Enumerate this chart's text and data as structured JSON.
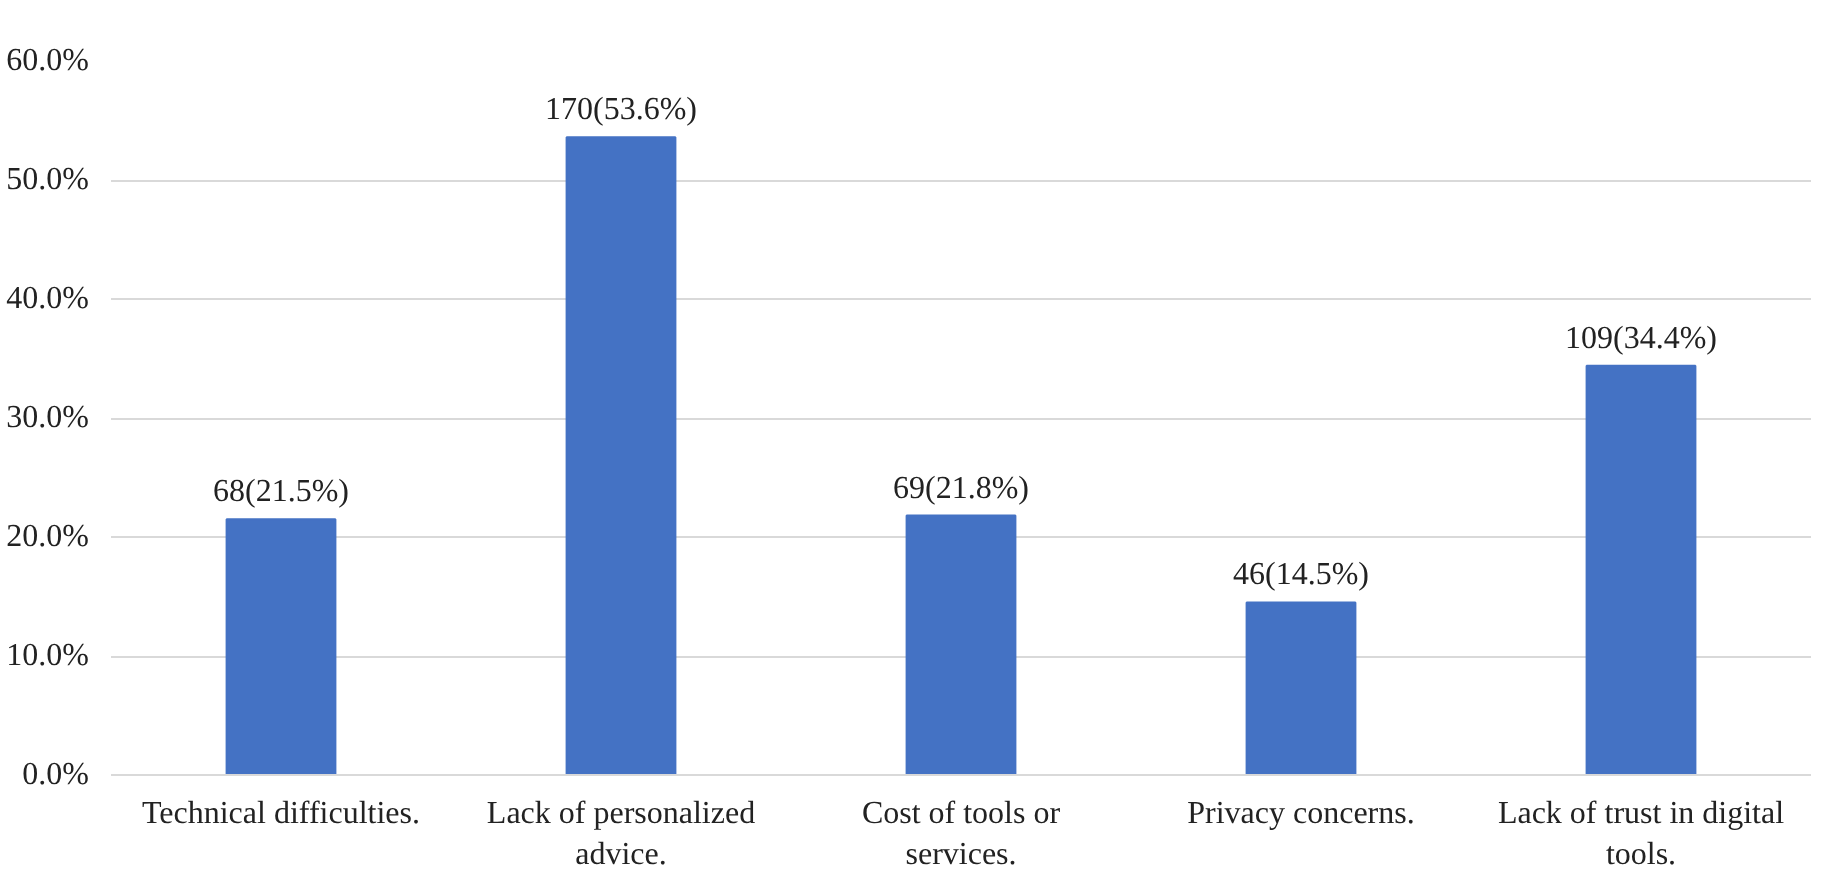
{
  "chart_data": {
    "type": "bar",
    "categories": [
      "Technical difficulties.",
      "Lack of personalized advice.",
      "Cost of tools or services.",
      "Privacy concerns.",
      "Lack of trust in digital tools."
    ],
    "values": [
      21.5,
      53.6,
      21.8,
      14.5,
      34.4
    ],
    "value_labels": [
      "68(21.5%)",
      "170(53.6%)",
      "69(21.8%)",
      "46(14.5%)",
      "109(34.4%)"
    ],
    "color": "#4472c4",
    "ylim": [
      0,
      60
    ],
    "yticks": [
      {
        "value": 0,
        "label": "0.0%"
      },
      {
        "value": 10,
        "label": "10.0%"
      },
      {
        "value": 20,
        "label": "20.0%"
      },
      {
        "value": 30,
        "label": "30.0%"
      },
      {
        "value": 40,
        "label": "40.0%"
      },
      {
        "value": 50,
        "label": "50.0%"
      },
      {
        "value": 60,
        "label": "60.0%"
      }
    ],
    "grid": "y"
  }
}
